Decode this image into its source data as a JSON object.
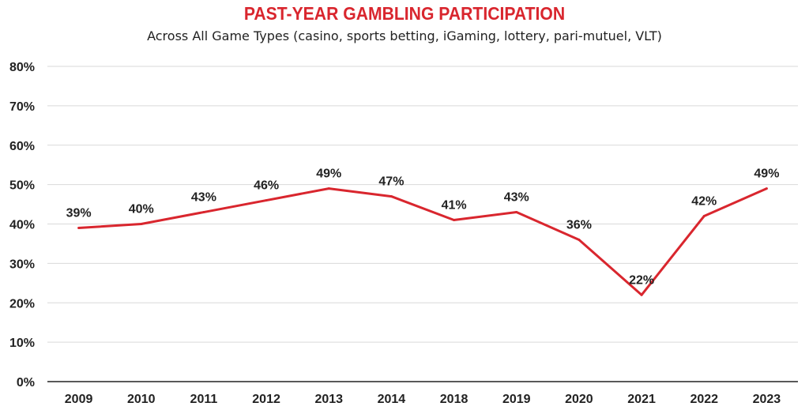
{
  "chart_data": {
    "type": "line",
    "title": "PAST-YEAR GAMBLING PARTICIPATION",
    "subtitle": "Across All Game Types (casino, sports betting, iGaming, lottery, pari-mutuel, VLT)",
    "categories": [
      "2009",
      "2010",
      "2011",
      "2012",
      "2013",
      "2014",
      "2018",
      "2019",
      "2020",
      "2021",
      "2022",
      "2023"
    ],
    "series": [
      {
        "values": [
          39,
          40,
          43,
          46,
          49,
          47,
          41,
          43,
          36,
          22,
          42,
          49
        ],
        "labels": [
          "39%",
          "40%",
          "43%",
          "46%",
          "49%",
          "47%",
          "41%",
          "43%",
          "36%",
          "22%",
          "42%",
          "49%"
        ],
        "color": "#d9262e"
      }
    ],
    "ylim": [
      0,
      80
    ],
    "yticks": [
      "0%",
      "10%",
      "20%",
      "30%",
      "40%",
      "50%",
      "60%",
      "70%",
      "80%"
    ],
    "grid": true,
    "gridColor": "#d9d9d9",
    "xlabel": "",
    "ylabel": ""
  }
}
